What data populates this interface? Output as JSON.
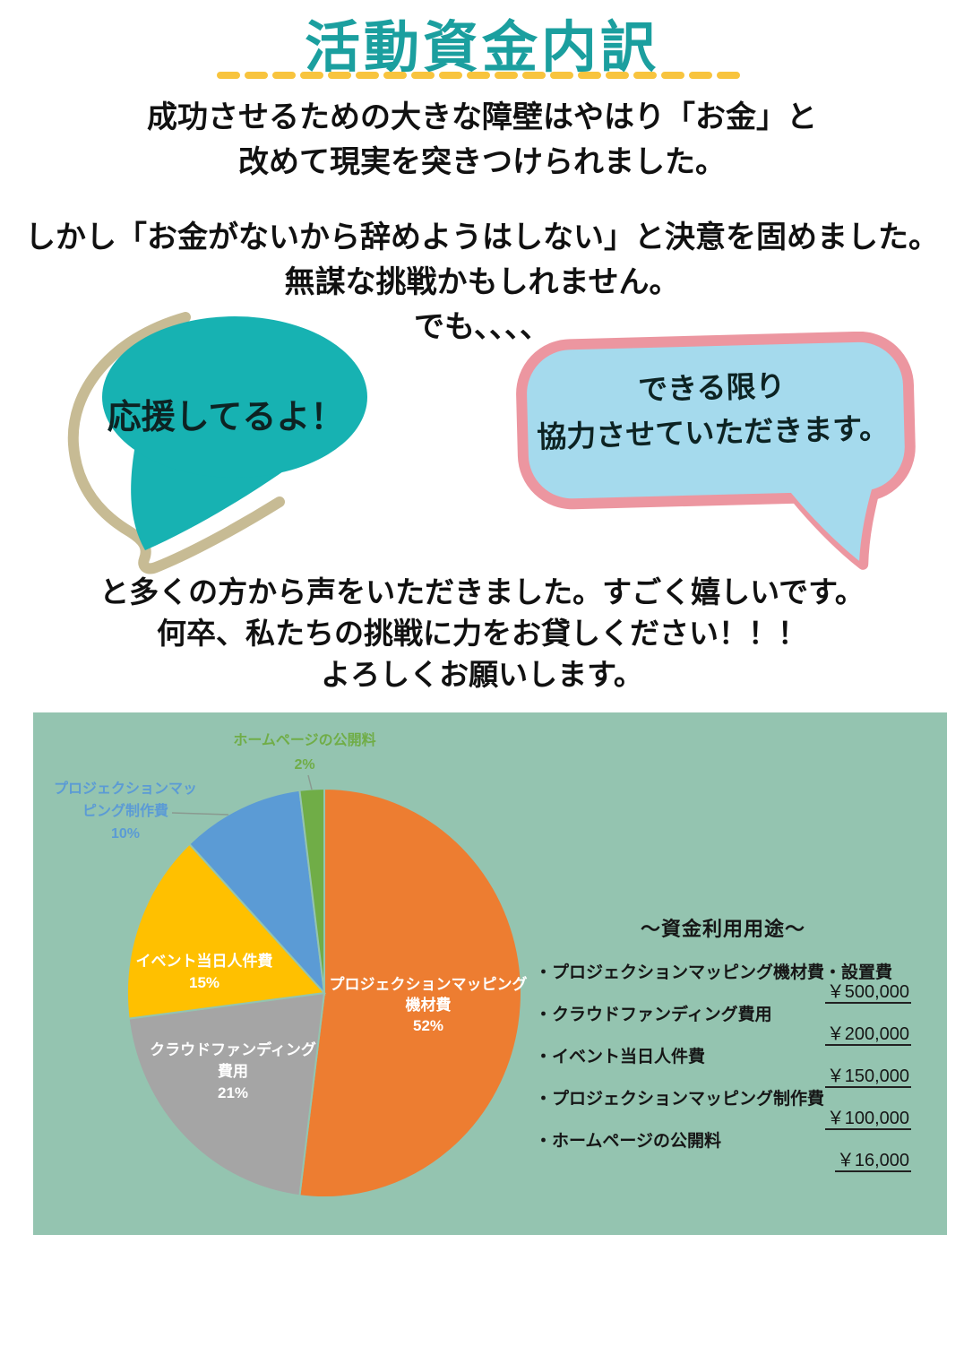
{
  "title": {
    "text": "活動資金内訳",
    "color": "#1b9f9f",
    "underline_color": "#f8c43e"
  },
  "paragraphs": {
    "p1_line1": "成功させるための大きな障壁はやはり「お金」と",
    "p1_line2": "改めて現実を突きつけられました。",
    "p2_line1": "しかし「お金がないから辞めようはしない」と決意を固めました。",
    "p2_line2": "無謀な挑戦かもしれません。",
    "p2_line3": "でも、、、、",
    "p3_line1": "と多くの方から声をいただきました。すごく嬉しいです。",
    "p3_line2": "何卒、私たちの挑戦に力をお貸しください！！！",
    "p3_line3": "よろしくお願いします。"
  },
  "bubbles": {
    "left": {
      "text": "応援してるよ！",
      "fill": "#17b2b2",
      "outline": "#c7bb94"
    },
    "right": {
      "line1": "できる限り",
      "line2": "協力させていただきます。",
      "fill": "#a5daed",
      "border": "#ec96a0"
    }
  },
  "chart_data": {
    "type": "pie",
    "background": "#94c4b0",
    "start_angle": "top, clockwise",
    "categories": [
      "プロジェクションマッピング機材費",
      "クラウドファンディング費用",
      "イベント当日人件費",
      "プロジェクションマッピング制作費",
      "ホームページの公開料"
    ],
    "percent": [
      52,
      21,
      15,
      10,
      2
    ],
    "values_yen": [
      500000,
      200000,
      150000,
      100000,
      16000
    ],
    "slices": [
      {
        "pct": 52,
        "color": "#ED7D31",
        "label_position": "inside",
        "label_lines": [
          "プロジェクションマッピング",
          "機材費"
        ],
        "pct_label": "52%"
      },
      {
        "pct": 21,
        "color": "#A5A5A5",
        "label_position": "inside",
        "label_lines": [
          "クラウドファンディング",
          "費用"
        ],
        "pct_label": "21%"
      },
      {
        "pct": 15,
        "color": "#FFC000",
        "label_position": "inside",
        "label_lines": [
          "イベント当日人件費"
        ],
        "pct_label": "15%"
      },
      {
        "pct": 10,
        "color": "#5B9BD5",
        "label_position": "outside",
        "label_lines": [
          "プロジェクションマッ",
          "ピング制作費"
        ],
        "pct_label": "10%"
      },
      {
        "pct": 2,
        "color": "#70AD47",
        "label_position": "outside",
        "label_lines": [
          "ホームページの公開料"
        ],
        "pct_label": "2%"
      }
    ]
  },
  "legend": {
    "header": "～資金利用用途～",
    "items": [
      {
        "label": "・プロジェクションマッピング機材費・設置費",
        "amount": "￥500,000"
      },
      {
        "label": "・クラウドファンディング費用",
        "amount": "￥200,000"
      },
      {
        "label": "・イベント当日人件費",
        "amount": "￥150,000"
      },
      {
        "label": "・プロジェクションマッピング制作費",
        "amount": "￥100,000"
      },
      {
        "label": "・ホームページの公開料",
        "amount": "￥16,000"
      }
    ]
  }
}
